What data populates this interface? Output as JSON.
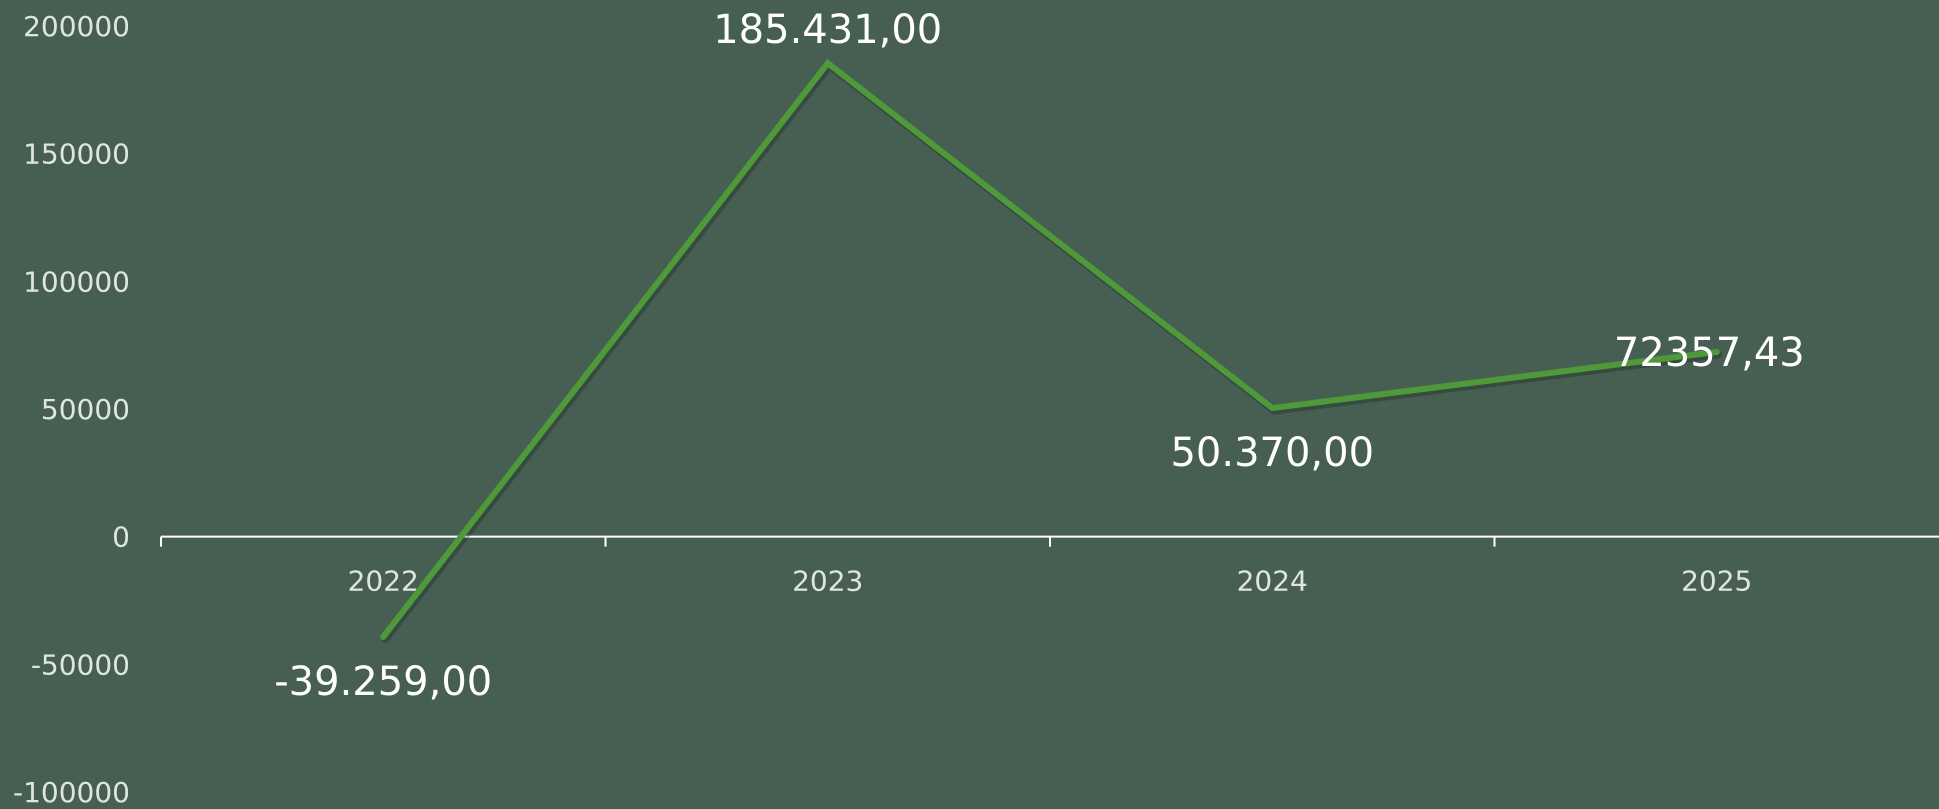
{
  "chart_data": {
    "type": "line",
    "title": "",
    "xlabel": "",
    "ylabel": "",
    "categories": [
      "2022",
      "2023",
      "2024",
      "2025"
    ],
    "series": [
      {
        "values": [
          -39259,
          185431,
          50370,
          72357.43
        ],
        "data_labels": [
          "-39.259,00",
          "185.431,00",
          "50.370,00",
          "72357,43"
        ]
      }
    ],
    "ylim": [
      -100000,
      200000
    ],
    "y_ticks": [
      "200000",
      "150000",
      "100000",
      "50000",
      "0",
      "-50000",
      "-100000"
    ],
    "y_tick_values": [
      200000,
      150000,
      100000,
      50000,
      0,
      -50000,
      -100000
    ],
    "grid": false,
    "legend": "none",
    "colors": {
      "background": "#475f52",
      "line": "#4e9a3a",
      "axis": "#ffffff",
      "tick_text": "#dfe5df",
      "label_text": "#ffffff"
    }
  }
}
